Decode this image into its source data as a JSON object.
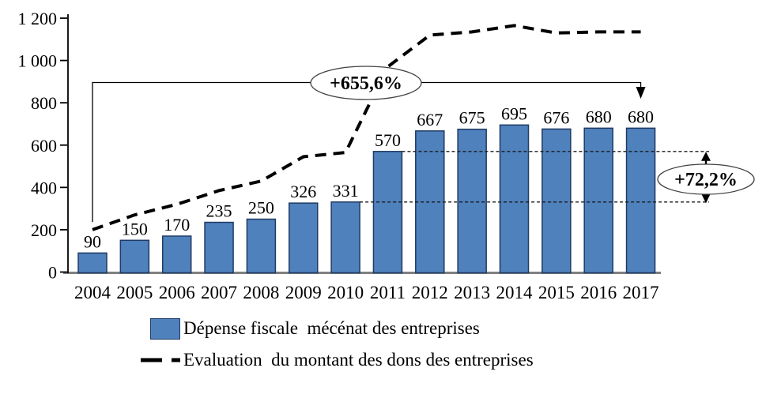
{
  "chart_data": {
    "type": "combo",
    "categories": [
      "2004",
      "2005",
      "2006",
      "2007",
      "2008",
      "2009",
      "2010",
      "2011",
      "2012",
      "2013",
      "2014",
      "2015",
      "2016",
      "2017"
    ],
    "series": [
      {
        "name": "Dépense fiscale mécénat des entreprises",
        "type": "bar",
        "color": "#4f81bd",
        "border_color": "#1f3b63",
        "values": [
          90,
          150,
          170,
          235,
          250,
          326,
          331,
          570,
          667,
          675,
          695,
          676,
          680,
          680
        ],
        "data_labels": true
      },
      {
        "name": "Evaluation du montant des dons des entreprises",
        "type": "line",
        "dashed": true,
        "color": "#000000",
        "values_estimated": [
          200,
          270,
          320,
          385,
          430,
          545,
          565,
          970,
          1120,
          1135,
          1165,
          1130,
          1135,
          1135
        ]
      }
    ],
    "ylim": [
      0,
      1200
    ],
    "yticks": [
      0,
      200,
      400,
      600,
      800,
      1000,
      1200
    ],
    "ytick_labels": [
      "0",
      "200",
      "400",
      "600",
      "800",
      "1 000",
      "1 200"
    ],
    "grid": false,
    "legend_position": "bottom-left",
    "annotations": [
      {
        "id": "total-growth",
        "text": "+655,6%"
      },
      {
        "id": "growth-2010-2011",
        "text": "+72,2%"
      }
    ],
    "reference_dotted_levels": [
      570,
      331
    ]
  },
  "legend": {
    "items": [
      {
        "label": "Dépense fiscale  mécénat des entreprises",
        "swatch": "bar"
      },
      {
        "label": "Evaluation  du montant des dons des entreprises",
        "swatch": "dashed-line"
      }
    ]
  }
}
